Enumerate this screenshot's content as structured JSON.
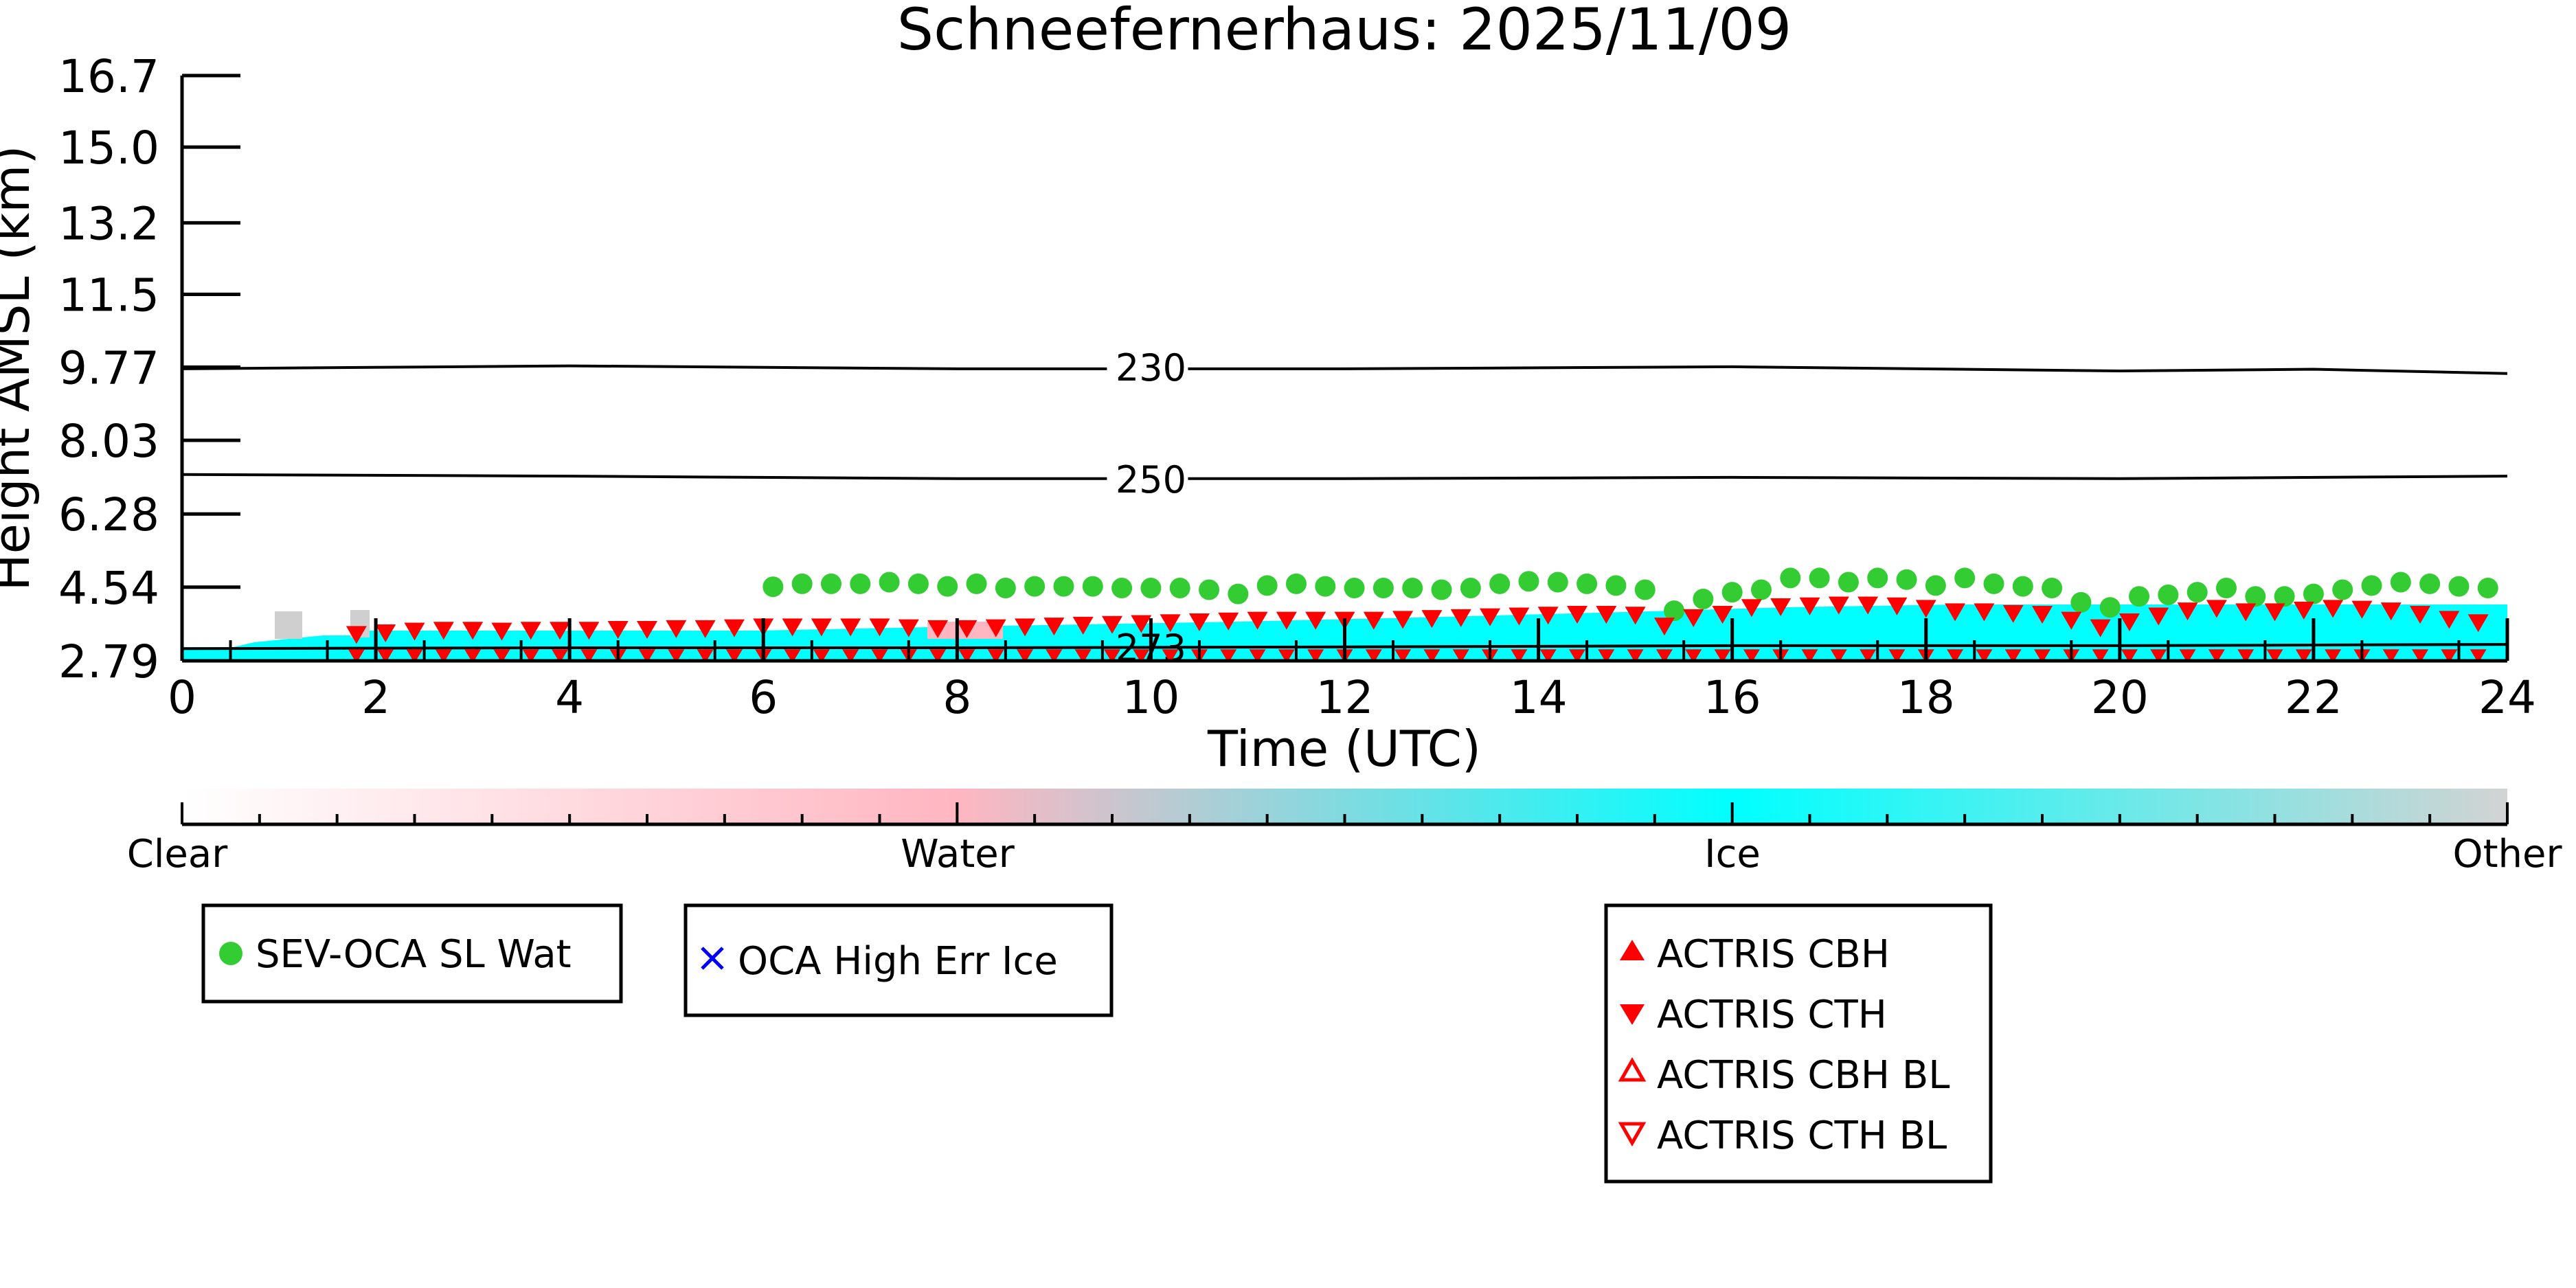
{
  "chart_data": {
    "type": "scatter",
    "title": "Schneefernerhaus: 2025/11/09",
    "xlabel": "Time (UTC)",
    "ylabel": "Height AMSL (km)",
    "xlim": [
      0,
      24
    ],
    "ylim": [
      2.79,
      16.7
    ],
    "x_ticks": [
      "0",
      "2",
      "4",
      "6",
      "8",
      "10",
      "12",
      "14",
      "16",
      "18",
      "20",
      "22",
      "24"
    ],
    "y_ticks": [
      "2.79",
      "4.54",
      "6.28",
      "8.03",
      "9.77",
      "11.5",
      "13.2",
      "15.0",
      "16.7"
    ],
    "grid": false,
    "temperature_contours": [
      {
        "label": "230",
        "x": [
          0,
          4,
          8,
          12,
          16,
          20,
          22,
          24
        ],
        "y": [
          9.73,
          9.8,
          9.73,
          9.73,
          9.78,
          9.68,
          9.72,
          9.62
        ]
      },
      {
        "label": "250",
        "x": [
          0,
          4,
          8,
          12,
          16,
          20,
          24
        ],
        "y": [
          7.22,
          7.18,
          7.12,
          7.12,
          7.15,
          7.12,
          7.18
        ]
      },
      {
        "label": "273",
        "x": [
          0,
          4,
          8,
          12,
          16,
          20,
          24
        ],
        "y": [
          3.08,
          3.1,
          3.1,
          3.12,
          3.15,
          3.15,
          3.18
        ]
      }
    ],
    "series": [
      {
        "name": "SEV-OCA SL Wat",
        "color": "#33cc33",
        "marker": "circle",
        "x": [
          6.1,
          6.4,
          6.7,
          7.0,
          7.3,
          7.6,
          7.9,
          8.2,
          8.5,
          8.8,
          9.1,
          9.4,
          9.7,
          10.0,
          10.3,
          10.6,
          10.9,
          11.2,
          11.5,
          11.8,
          12.1,
          12.4,
          12.7,
          13.0,
          13.3,
          13.6,
          13.9,
          14.2,
          14.5,
          14.8,
          15.1,
          15.4,
          15.7,
          16.0,
          16.3,
          16.6,
          16.9,
          17.2,
          17.5,
          17.8,
          18.1,
          18.4,
          18.7,
          19.0,
          19.3,
          19.6,
          19.9,
          20.2,
          20.5,
          20.8,
          21.1,
          21.4,
          21.7,
          22.0,
          22.3,
          22.6,
          22.9,
          23.2,
          23.5,
          23.8
        ],
        "y": [
          4.55,
          4.62,
          4.62,
          4.62,
          4.66,
          4.62,
          4.56,
          4.62,
          4.52,
          4.56,
          4.56,
          4.56,
          4.52,
          4.52,
          4.52,
          4.48,
          4.38,
          4.58,
          4.62,
          4.56,
          4.52,
          4.52,
          4.52,
          4.48,
          4.52,
          4.62,
          4.68,
          4.66,
          4.62,
          4.58,
          4.48,
          3.98,
          4.26,
          4.42,
          4.48,
          4.76,
          4.76,
          4.66,
          4.76,
          4.72,
          4.58,
          4.76,
          4.62,
          4.56,
          4.52,
          4.18,
          4.06,
          4.32,
          4.36,
          4.42,
          4.52,
          4.32,
          4.32,
          4.38,
          4.48,
          4.58,
          4.66,
          4.62,
          4.56,
          4.52
        ]
      },
      {
        "name": "OCA High Err Ice",
        "color": "#0000ff",
        "marker": "x",
        "x": [],
        "y": []
      },
      {
        "name": "ACTRIS CBH",
        "color": "#ff0000",
        "marker": "triangle-up",
        "x": [],
        "y": []
      },
      {
        "name": "ACTRIS CTH",
        "color": "#ff0000",
        "marker": "triangle-down",
        "x": [
          1.8,
          2.1,
          2.4,
          2.7,
          3.0,
          3.3,
          3.6,
          3.9,
          4.2,
          4.5,
          4.8,
          5.1,
          5.4,
          5.7,
          6.0,
          6.3,
          6.6,
          6.9,
          7.2,
          7.5,
          7.8,
          8.1,
          8.4,
          8.7,
          9.0,
          9.3,
          9.6,
          9.9,
          10.2,
          10.5,
          10.8,
          11.1,
          11.4,
          11.7,
          12.0,
          12.3,
          12.6,
          12.9,
          13.2,
          13.5,
          13.8,
          14.1,
          14.4,
          14.7,
          15.0,
          15.3,
          15.6,
          15.9,
          16.2,
          16.5,
          16.8,
          17.1,
          17.4,
          17.7,
          18.0,
          18.3,
          18.6,
          18.9,
          19.2,
          19.5,
          19.8,
          20.1,
          20.4,
          20.7,
          21.0,
          21.3,
          21.6,
          21.9,
          22.2,
          22.5,
          22.8,
          23.1,
          23.4,
          23.7
        ],
        "y": [
          3.42,
          3.46,
          3.5,
          3.52,
          3.52,
          3.5,
          3.52,
          3.52,
          3.52,
          3.54,
          3.54,
          3.56,
          3.56,
          3.58,
          3.6,
          3.6,
          3.6,
          3.6,
          3.6,
          3.58,
          3.56,
          3.56,
          3.58,
          3.6,
          3.62,
          3.64,
          3.66,
          3.68,
          3.7,
          3.72,
          3.74,
          3.76,
          3.76,
          3.76,
          3.76,
          3.76,
          3.78,
          3.8,
          3.82,
          3.84,
          3.86,
          3.88,
          3.9,
          3.9,
          3.88,
          3.62,
          3.82,
          3.9,
          4.06,
          4.08,
          4.1,
          4.12,
          4.12,
          4.1,
          4.04,
          3.96,
          3.96,
          3.92,
          3.9,
          3.76,
          3.58,
          3.72,
          3.86,
          3.98,
          4.04,
          3.96,
          3.96,
          4.0,
          4.04,
          4.02,
          3.98,
          3.9,
          3.78,
          3.7
        ]
      },
      {
        "name": "ACTRIS CBH BL",
        "color": "#ff0000",
        "marker": "triangle-up-open",
        "x": [],
        "y": []
      },
      {
        "name": "ACTRIS CTH BL",
        "color": "#ff0000",
        "marker": "triangle-down-open",
        "x": [],
        "y": []
      }
    ],
    "classification_colorbar": {
      "labels": [
        "Clear",
        "Water",
        "Ice",
        "Other"
      ],
      "colors": [
        "#ffffff",
        "#ffb6c1",
        "#00ffff",
        "#d3d3d3"
      ]
    },
    "legends": [
      {
        "entries": [
          "SEV-OCA SL Wat"
        ]
      },
      {
        "entries": [
          "OCA High Err Ice"
        ]
      },
      {
        "entries": [
          "ACTRIS CBH",
          "ACTRIS CTH",
          "ACTRIS CBH BL",
          "ACTRIS CTH BL"
        ]
      }
    ]
  }
}
